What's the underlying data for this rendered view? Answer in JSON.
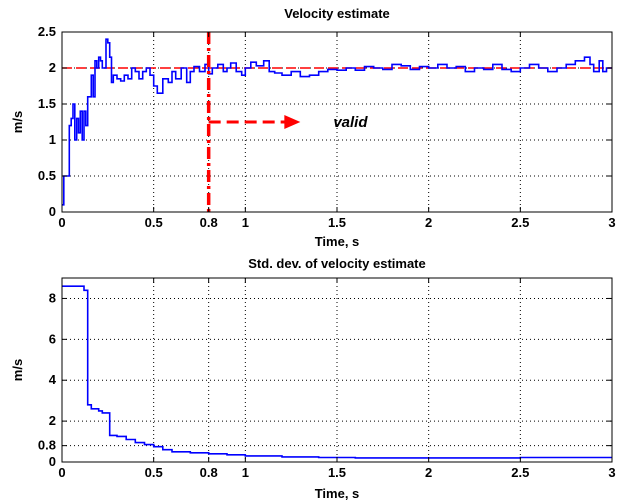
{
  "colors": {
    "series": "#0000ff",
    "reference": "#ff0000",
    "grid": "#000000",
    "axes": "#000000"
  },
  "chart_data": [
    {
      "type": "line",
      "title": "Velocity estimate",
      "xlabel": "Time, s",
      "ylabel": "m/s",
      "xlim": [
        0,
        3
      ],
      "ylim": [
        0,
        2.5
      ],
      "grid": true,
      "xticks": [
        0,
        0.5,
        0.8,
        1,
        1.5,
        2,
        2.5,
        3
      ],
      "xtick_labels": [
        "0",
        "0.5",
        "0.8",
        "1",
        "1.5",
        "2",
        "2.5",
        "3"
      ],
      "yticks": [
        0,
        0.5,
        1,
        1.5,
        2,
        2.5
      ],
      "ytick_labels": [
        "0",
        "0.5",
        "1",
        "1.5",
        "2",
        "2.5"
      ],
      "series": [
        {
          "step": true,
          "x": [
            0,
            0.01,
            0.02,
            0.04,
            0.05,
            0.06,
            0.07,
            0.08,
            0.09,
            0.1,
            0.11,
            0.12,
            0.13,
            0.14,
            0.15,
            0.16,
            0.17,
            0.18,
            0.19,
            0.2,
            0.21,
            0.22,
            0.23,
            0.24,
            0.25,
            0.26,
            0.27,
            0.28,
            0.3,
            0.32,
            0.34,
            0.36,
            0.38,
            0.4,
            0.42,
            0.44,
            0.46,
            0.48,
            0.5,
            0.52,
            0.55,
            0.58,
            0.6,
            0.62,
            0.65,
            0.68,
            0.7,
            0.72,
            0.75,
            0.78,
            0.8,
            0.82,
            0.85,
            0.88,
            0.9,
            0.92,
            0.95,
            0.98,
            1.0,
            1.03,
            1.06,
            1.1,
            1.13,
            1.16,
            1.2,
            1.25,
            1.3,
            1.35,
            1.4,
            1.45,
            1.5,
            1.55,
            1.6,
            1.65,
            1.7,
            1.75,
            1.8,
            1.85,
            1.9,
            1.95,
            2.0,
            2.05,
            2.1,
            2.15,
            2.2,
            2.25,
            2.3,
            2.35,
            2.4,
            2.45,
            2.5,
            2.55,
            2.6,
            2.65,
            2.7,
            2.75,
            2.8,
            2.85,
            2.88,
            2.9,
            2.93,
            2.95,
            2.97,
            3.0
          ],
          "values": [
            0.1,
            0.5,
            0.5,
            1.2,
            1.3,
            1.5,
            1.0,
            1.3,
            1.1,
            1.4,
            1.0,
            1.4,
            1.2,
            1.6,
            1.6,
            1.9,
            1.6,
            2.1,
            2.0,
            2.15,
            2.1,
            2.0,
            2.0,
            2.4,
            2.35,
            2.15,
            1.8,
            1.9,
            1.85,
            1.82,
            1.9,
            1.85,
            2.0,
            1.95,
            1.85,
            1.95,
            2.0,
            1.9,
            1.75,
            1.65,
            1.85,
            1.8,
            1.95,
            1.85,
            2.0,
            1.8,
            1.95,
            2.02,
            1.95,
            2.05,
            1.92,
            2.0,
            2.05,
            1.95,
            2.0,
            2.07,
            1.95,
            1.9,
            2.0,
            2.08,
            2.03,
            2.1,
            1.95,
            1.93,
            1.9,
            1.95,
            1.88,
            1.9,
            1.95,
            1.98,
            1.97,
            2.0,
            1.97,
            2.02,
            2.0,
            1.98,
            2.05,
            2.03,
            1.98,
            2.02,
            2.0,
            2.05,
            2.0,
            2.02,
            1.95,
            2.0,
            1.98,
            2.05,
            1.98,
            1.95,
            2.0,
            2.05,
            2.0,
            1.95,
            2.0,
            2.05,
            2.1,
            2.15,
            2.05,
            1.95,
            2.1,
            1.95,
            2.0,
            2.0
          ]
        }
      ],
      "reference_y": 2.0,
      "marker_x": 0.8,
      "arrow": {
        "x_start": 0.8,
        "x_end": 1.3,
        "y": 1.25
      },
      "annotations": [
        {
          "text": "valid",
          "x": 1.48,
          "y": 1.25
        }
      ]
    },
    {
      "type": "line",
      "title": "Std. dev. of velocity estimate",
      "xlabel": "Time, s",
      "ylabel": "m/s",
      "xlim": [
        0,
        3
      ],
      "ylim": [
        0,
        9
      ],
      "grid": true,
      "xticks": [
        0,
        0.5,
        0.8,
        1,
        1.5,
        2,
        2.5,
        3
      ],
      "xtick_labels": [
        "0",
        "0.5",
        "0.8",
        "1",
        "1.5",
        "2",
        "2.5",
        "3"
      ],
      "yticks": [
        0,
        0.8,
        2,
        4,
        6,
        8
      ],
      "ytick_labels": [
        "0",
        "0.8",
        "2",
        "4",
        "6",
        "8"
      ],
      "series": [
        {
          "step": true,
          "x": [
            0,
            0.12,
            0.14,
            0.16,
            0.18,
            0.2,
            0.22,
            0.24,
            0.26,
            0.3,
            0.35,
            0.4,
            0.45,
            0.5,
            0.55,
            0.6,
            0.7,
            0.8,
            0.9,
            1.0,
            1.2,
            1.4,
            1.6,
            2.0,
            2.5,
            3.0
          ],
          "values": [
            8.6,
            8.4,
            2.8,
            2.6,
            2.6,
            2.5,
            2.4,
            2.4,
            1.3,
            1.25,
            1.1,
            0.95,
            0.85,
            0.75,
            0.6,
            0.5,
            0.45,
            0.4,
            0.35,
            0.3,
            0.25,
            0.22,
            0.2,
            0.2,
            0.22,
            0.22
          ]
        }
      ],
      "reference_y": null,
      "marker_x": null,
      "arrow": null,
      "annotations": []
    }
  ]
}
